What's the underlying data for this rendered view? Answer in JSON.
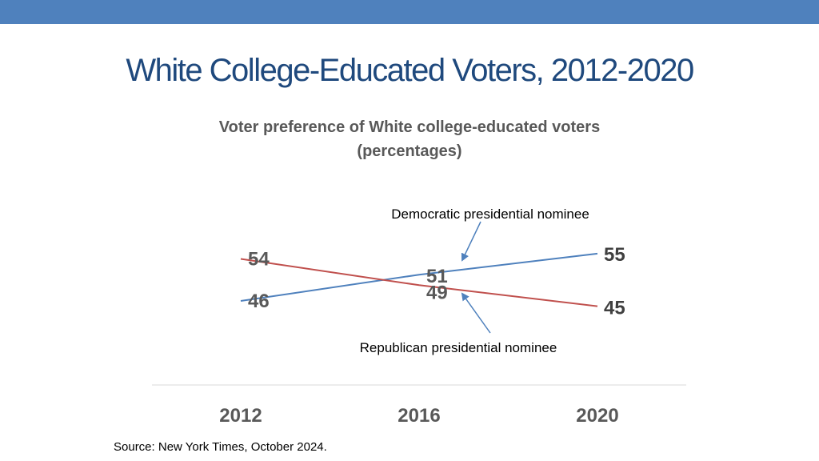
{
  "slide": {
    "title": "White College-Educated Voters, 2012-2020",
    "source": "Source: New York Times, October 2024."
  },
  "colors": {
    "top_bar": "#4f81bd",
    "title": "#1f497d",
    "democratic": "#4f81bd",
    "republican": "#c0504d",
    "label_text": "#595959",
    "axis_line": "#d9d9d9"
  },
  "chart_data": {
    "type": "line",
    "title_line1": "Voter preference of White college-educated voters",
    "title_line2": "(percentages)",
    "x": [
      "2012",
      "2016",
      "2020"
    ],
    "ylim": [
      40,
      60
    ],
    "grid": false,
    "series": [
      {
        "name": "Democratic presidential nominee",
        "color": "#4f81bd",
        "values": [
          46,
          51,
          55
        ]
      },
      {
        "name": "Republican presidential nominee",
        "color": "#c0504d",
        "values": [
          54,
          49,
          45
        ]
      }
    ]
  }
}
